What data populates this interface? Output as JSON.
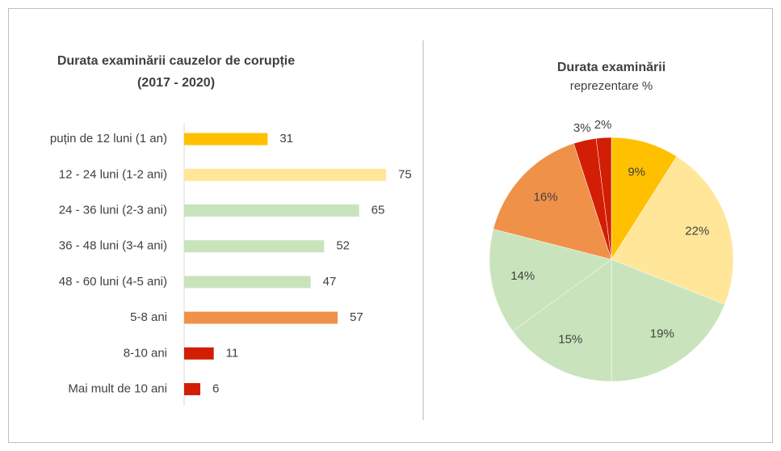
{
  "chart_data": [
    {
      "type": "barh",
      "title": "Durata examinării cauzelor de corupție",
      "subtitle": "(2017 - 2020)",
      "categories": [
        "puțin de 12 luni (1 an)",
        "12 - 24 luni (1-2 ani)",
        "24 - 36 luni (2-3 ani)",
        "36 - 48 luni (3-4 ani)",
        "48 - 60 luni  (4-5 ani)",
        "5-8 ani",
        "8-10 ani",
        "Mai mult de 10  ani"
      ],
      "values": [
        31,
        75,
        65,
        52,
        47,
        57,
        11,
        6
      ],
      "colors": [
        "#ffc000",
        "#ffe699",
        "#c9e4bc",
        "#c9e4bc",
        "#c9e4bc",
        "#f0914a",
        "#d21e04",
        "#d21e04"
      ],
      "xlim": [
        0,
        75
      ]
    },
    {
      "type": "pie",
      "title": "Durata examinării",
      "subtitle": "reprezentare %",
      "values": [
        9,
        22,
        19,
        15,
        14,
        16,
        3,
        2
      ],
      "value_labels": [
        "9%",
        "22%",
        "19%",
        "15%",
        "14%",
        "16%",
        "3%",
        "2%"
      ],
      "colors": [
        "#ffc000",
        "#ffe699",
        "#c9e4bc",
        "#c9e4bc",
        "#c9e4bc",
        "#f0914a",
        "#d21e04",
        "#d21e04"
      ]
    }
  ]
}
